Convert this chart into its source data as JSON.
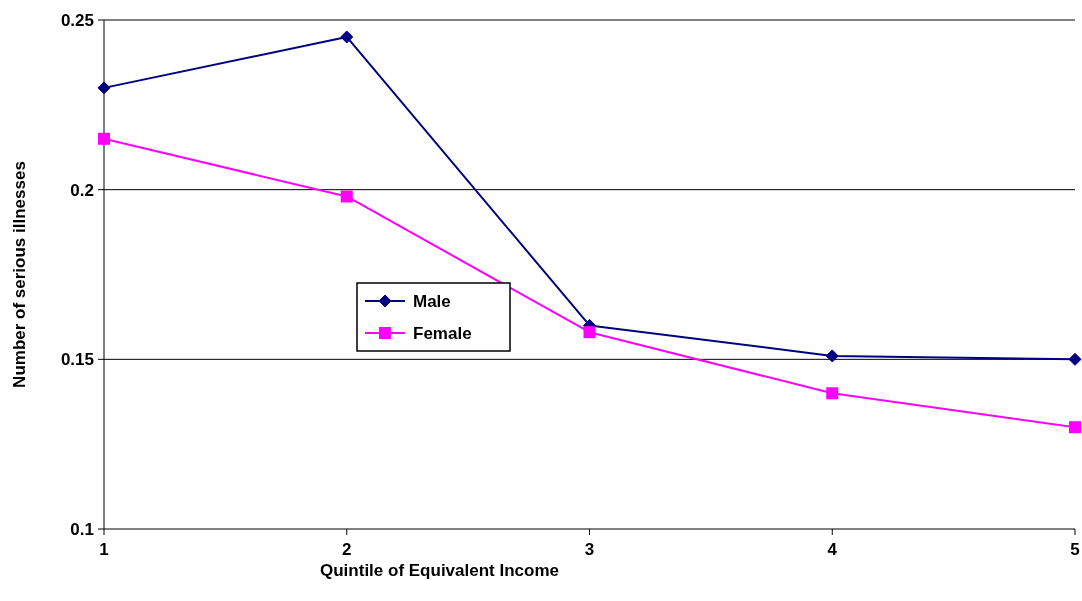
{
  "chart_data": {
    "type": "line",
    "xlabel": "Quintile of Equivalent Income",
    "ylabel": "Number of serious illnesses",
    "x": [
      1,
      2,
      3,
      4,
      5
    ],
    "xlim": [
      1,
      5
    ],
    "xticks": [
      1,
      2,
      3,
      4,
      5
    ],
    "ylim": [
      0.1,
      0.25
    ],
    "yticks": [
      0.1,
      0.15,
      0.2,
      0.25
    ],
    "grid": "y",
    "legend": "left",
    "series": [
      {
        "name": "Male",
        "color": "#000080",
        "marker": "diamond",
        "values": [
          0.23,
          0.245,
          0.16,
          0.151,
          0.15
        ]
      },
      {
        "name": "Female",
        "color": "#ff00ff",
        "marker": "square",
        "values": [
          0.215,
          0.198,
          0.158,
          0.14,
          0.13
        ]
      }
    ]
  }
}
